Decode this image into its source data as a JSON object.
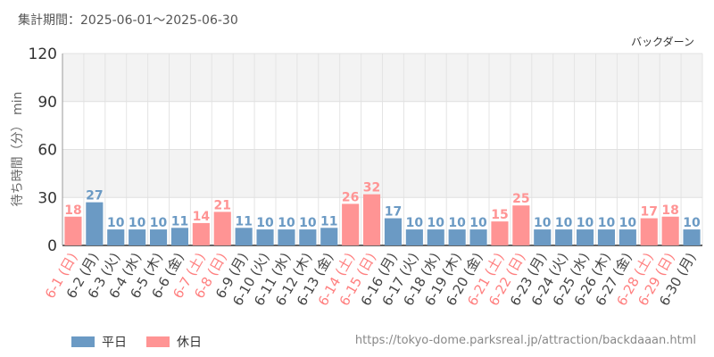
{
  "header": {
    "period": "集計期間：2025-06-01～2025-06-30",
    "attraction": "バックダーン"
  },
  "footer": {
    "source_url": "https://tokyo-dome.parksreal.jp/attraction/backdaaan.html"
  },
  "chart_data": {
    "type": "bar",
    "ylabel": "待ち時間（分） min",
    "ylim": [
      0,
      120
    ],
    "yticks": [
      0,
      30,
      60,
      90,
      120
    ],
    "grid": true,
    "legend_placement": "bottom-left",
    "categories": [
      "6-1 (日)",
      "6-2 (月)",
      "6-3 (火)",
      "6-4 (水)",
      "6-5 (木)",
      "6-6 (金)",
      "6-7 (土)",
      "6-8 (日)",
      "6-9 (月)",
      "6-10 (火)",
      "6-11 (水)",
      "6-12 (木)",
      "6-13 (金)",
      "6-14 (土)",
      "6-15 (日)",
      "6-16 (月)",
      "6-17 (火)",
      "6-18 (水)",
      "6-19 (木)",
      "6-20 (金)",
      "6-21 (土)",
      "6-22 (日)",
      "6-23 (月)",
      "6-24 (火)",
      "6-25 (水)",
      "6-26 (木)",
      "6-27 (金)",
      "6-28 (土)",
      "6-29 (日)",
      "6-30 (月)"
    ],
    "values": [
      18,
      27,
      10,
      10,
      10,
      11,
      14,
      21,
      11,
      10,
      10,
      10,
      11,
      26,
      32,
      17,
      10,
      10,
      10,
      10,
      15,
      25,
      10,
      10,
      10,
      10,
      10,
      17,
      18,
      10
    ],
    "day_type": [
      "休日",
      "平日",
      "平日",
      "平日",
      "平日",
      "平日",
      "休日",
      "休日",
      "平日",
      "平日",
      "平日",
      "平日",
      "平日",
      "休日",
      "休日",
      "平日",
      "平日",
      "平日",
      "平日",
      "平日",
      "休日",
      "休日",
      "平日",
      "平日",
      "平日",
      "平日",
      "平日",
      "休日",
      "休日",
      "平日"
    ],
    "series": [
      {
        "name": "平日",
        "color": "#6b9ac4"
      },
      {
        "name": "休日",
        "color": "#ff9494"
      }
    ],
    "label_colors": {
      "平日": "#444444",
      "休日": "#ff7f7f"
    }
  }
}
